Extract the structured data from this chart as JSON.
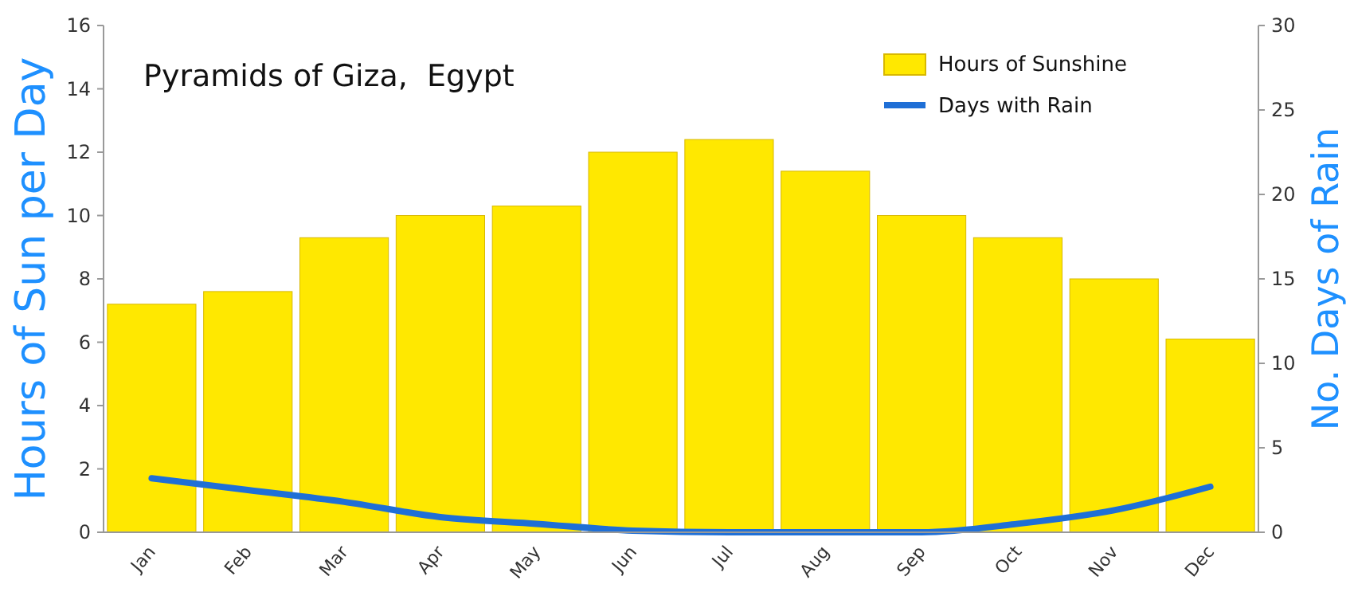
{
  "chart_data": {
    "type": "bar",
    "title": "Pyramids of Giza,  Egypt",
    "ylabel": "Hours of Sun per Day",
    "y2label": "No. Days of Rain",
    "categories": [
      "Jan",
      "Feb",
      "Mar",
      "Apr",
      "May",
      "Jun",
      "Jul",
      "Aug",
      "Sep",
      "Oct",
      "Nov",
      "Dec"
    ],
    "series": [
      {
        "name": "Hours of Sunshine",
        "color": "#ffe800",
        "values": [
          7.2,
          7.6,
          9.3,
          10.0,
          10.3,
          12.0,
          12.4,
          11.4,
          10.0,
          9.3,
          8.0,
          6.1
        ]
      },
      {
        "name": "Days with Rain",
        "type": "line",
        "axis": "y2",
        "color": "#1f6fd6",
        "values": [
          3.2,
          2.5,
          1.8,
          0.9,
          0.5,
          0.1,
          0,
          0,
          0,
          0.5,
          1.3,
          2.7
        ]
      }
    ],
    "ylim": [
      0,
      16
    ],
    "yticks": [
      0,
      2,
      4,
      6,
      8,
      10,
      12,
      14,
      16
    ],
    "y2lim": [
      0,
      30
    ],
    "y2ticks": [
      0,
      5,
      10,
      15,
      20,
      25,
      30
    ],
    "legend": "top right",
    "grid": false,
    "marker": "none",
    "line_style": "solid"
  }
}
